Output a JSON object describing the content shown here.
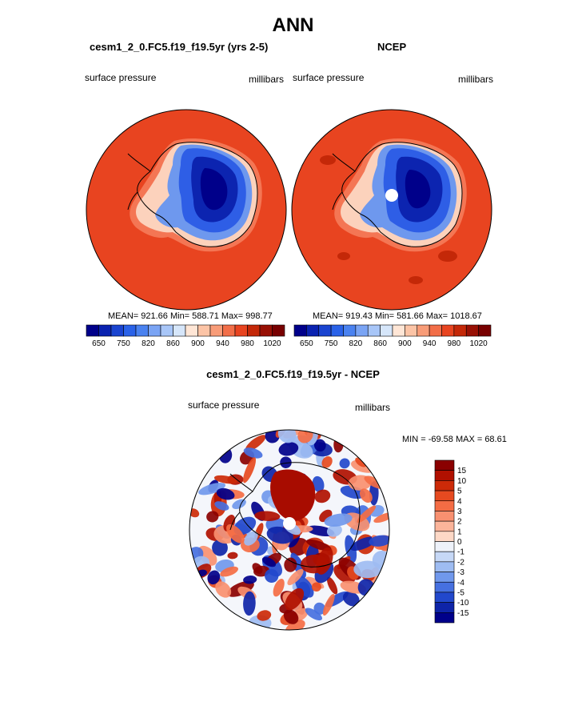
{
  "page": {
    "title": "ANN"
  },
  "chart_data": [
    {
      "type": "heatmap",
      "title": "cesm1_2_0.FC5.f19_f19.5yr (yrs 2-5)",
      "left_label": "surface pressure",
      "right_label": "millibars",
      "stats": "MEAN= 921.66  Min= 588.71  Max= 998.77",
      "mean": 921.66,
      "min": 588.71,
      "max": 998.77,
      "colorbar": {
        "orientation": "horizontal",
        "levels": [
          650,
          700,
          750,
          800,
          820,
          840,
          860,
          880,
          900,
          920,
          940,
          960,
          980,
          1000,
          1020
        ],
        "tick_labels": [
          "650",
          "750",
          "820",
          "860",
          "900",
          "940",
          "980",
          "1020"
        ],
        "colors": [
          "#00008a",
          "#0a22b0",
          "#1a44d0",
          "#2a62e8",
          "#4a82f0",
          "#7aa4f4",
          "#a8c6f8",
          "#d6e6fa",
          "#ffe6d6",
          "#fcc4a6",
          "#f89c78",
          "#f26e48",
          "#e84420",
          "#c42808",
          "#981004",
          "#780000"
        ]
      },
      "projection": "south-polar-stereographic"
    },
    {
      "type": "heatmap",
      "title": "NCEP",
      "left_label": "surface pressure",
      "right_label": "millibars",
      "stats": "MEAN= 919.43  Min= 581.66  Max= 1018.67",
      "mean": 919.43,
      "min": 581.66,
      "max": 1018.67,
      "colorbar": {
        "orientation": "horizontal",
        "levels": [
          650,
          700,
          750,
          800,
          820,
          840,
          860,
          880,
          900,
          920,
          940,
          960,
          980,
          1000,
          1020
        ],
        "tick_labels": [
          "650",
          "750",
          "820",
          "860",
          "900",
          "940",
          "980",
          "1020"
        ],
        "colors": [
          "#00008a",
          "#0a22b0",
          "#1a44d0",
          "#2a62e8",
          "#4a82f0",
          "#7aa4f4",
          "#a8c6f8",
          "#d6e6fa",
          "#ffe6d6",
          "#fcc4a6",
          "#f89c78",
          "#f26e48",
          "#e84420",
          "#c42808",
          "#981004",
          "#780000"
        ]
      },
      "projection": "south-polar-stereographic"
    },
    {
      "type": "heatmap",
      "title": "cesm1_2_0.FC5.f19_f19.5yr - NCEP",
      "left_label": "surface pressure",
      "right_label": "millibars",
      "stats": "MIN = -69.58 MAX =  68.61",
      "min": -69.58,
      "max": 68.61,
      "colorbar": {
        "orientation": "vertical",
        "tick_labels": [
          "15",
          "10",
          "5",
          "4",
          "3",
          "2",
          "1",
          "0",
          "-1",
          "-2",
          "-3",
          "-4",
          "-5",
          "-10",
          "-15"
        ],
        "colors": [
          "#8a0000",
          "#b01000",
          "#cc2a08",
          "#e64a20",
          "#f46c44",
          "#f89070",
          "#fbb49a",
          "#fdd8c6",
          "#eef2fa",
          "#c6d8f6",
          "#9ebcf2",
          "#7098ec",
          "#4670e0",
          "#2248cc",
          "#0e24a8",
          "#00008a"
        ]
      },
      "projection": "south-polar-stereographic"
    }
  ]
}
